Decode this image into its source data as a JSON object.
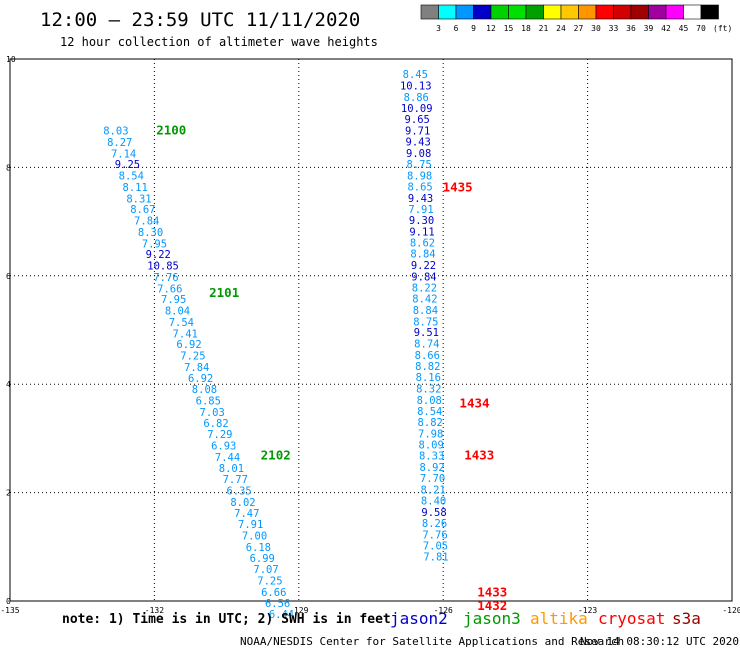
{
  "header": {
    "title": "12:00 — 23:59 UTC 11/11/2020",
    "subtitle": "12 hour collection of altimeter wave heights"
  },
  "color_scale": {
    "colors": [
      "#808080",
      "#00ffff",
      "#0098ff",
      "#0000c8",
      "#00d200",
      "#00e000",
      "#00a000",
      "#ffff00",
      "#ffc800",
      "#ff9600",
      "#ff0000",
      "#d20000",
      "#a00000",
      "#a000a0",
      "#ff00ff",
      "#ffffff",
      "#000000"
    ],
    "labels": [
      "3",
      "6",
      "9",
      "12",
      "15",
      "18",
      "21",
      "24",
      "27",
      "30",
      "33",
      "36",
      "39",
      "42",
      "45",
      "70"
    ],
    "unit": "(ft)"
  },
  "footer": {
    "note": "note: 1) Time is in UTC; 2) SWH is in feet",
    "satellites": [
      {
        "name": "jason2",
        "color": "#0000cc"
      },
      {
        "name": "jason3",
        "color": "#009900"
      },
      {
        "name": "altika",
        "color": "#ff9900"
      },
      {
        "name": "cryosat",
        "color": "#ff0000"
      },
      {
        "name": "s3a",
        "color": "#990000"
      }
    ],
    "credit": "NOAA/NESDIS Center for Satellite Applications and Research",
    "timestamp": "Nov 14 08:30:12 UTC 2020"
  },
  "chart_data": {
    "type": "scatter",
    "title": "12:00 — 23:59 UTC 11/11/2020",
    "xlim": [
      -135,
      -120
    ],
    "ylim": [
      0,
      10
    ],
    "x_ticks": [
      "-135",
      "-132",
      "-129",
      "-126",
      "-123",
      "-120"
    ],
    "y_ticks": [
      "0",
      "2",
      "4",
      "6",
      "8",
      "10"
    ],
    "grid": true,
    "tracks": [
      {
        "satellite": "jason3",
        "color": "#009900",
        "pass_labels": [
          {
            "text": "2100",
            "x": -131.65,
            "y": 8.68
          },
          {
            "text": "2101",
            "x": -130.55,
            "y": 5.68
          },
          {
            "text": "2102",
            "x": -129.48,
            "y": 2.68
          }
        ],
        "points": [
          {
            "x": -132.8,
            "y": 8.68,
            "v": "8.03"
          },
          {
            "x": -132.72,
            "y": 8.47,
            "v": "8.27"
          },
          {
            "x": -132.64,
            "y": 8.26,
            "v": "7.14"
          },
          {
            "x": -132.56,
            "y": 8.06,
            "v": "9.25"
          },
          {
            "x": -132.48,
            "y": 7.85,
            "v": "8.54"
          },
          {
            "x": -132.4,
            "y": 7.64,
            "v": "8.11"
          },
          {
            "x": -132.32,
            "y": 7.43,
            "v": "8.31"
          },
          {
            "x": -132.24,
            "y": 7.23,
            "v": "8.67"
          },
          {
            "x": -132.16,
            "y": 7.02,
            "v": "7.84"
          },
          {
            "x": -132.08,
            "y": 6.81,
            "v": "8.30"
          },
          {
            "x": -132.0,
            "y": 6.6,
            "v": "7.95"
          },
          {
            "x": -131.92,
            "y": 6.4,
            "v": "9.22"
          },
          {
            "x": -131.82,
            "y": 6.19,
            "v": "10.85"
          },
          {
            "x": -131.76,
            "y": 5.98,
            "v": "7.76"
          },
          {
            "x": -131.68,
            "y": 5.77,
            "v": "7.66"
          },
          {
            "x": -131.6,
            "y": 5.57,
            "v": "7.95"
          },
          {
            "x": -131.52,
            "y": 5.36,
            "v": "8.04"
          },
          {
            "x": -131.44,
            "y": 5.15,
            "v": "7.54"
          },
          {
            "x": -131.36,
            "y": 4.94,
            "v": "7.41"
          },
          {
            "x": -131.28,
            "y": 4.74,
            "v": "6.92"
          },
          {
            "x": -131.2,
            "y": 4.53,
            "v": "7.25"
          },
          {
            "x": -131.12,
            "y": 4.32,
            "v": "7.84"
          },
          {
            "x": -131.04,
            "y": 4.11,
            "v": "6.92"
          },
          {
            "x": -130.96,
            "y": 3.91,
            "v": "8.08"
          },
          {
            "x": -130.88,
            "y": 3.7,
            "v": "6.85"
          },
          {
            "x": -130.8,
            "y": 3.49,
            "v": "7.03"
          },
          {
            "x": -130.72,
            "y": 3.28,
            "v": "6.82"
          },
          {
            "x": -130.64,
            "y": 3.08,
            "v": "7.29"
          },
          {
            "x": -130.56,
            "y": 2.87,
            "v": "6.93"
          },
          {
            "x": -130.48,
            "y": 2.66,
            "v": "7.44"
          },
          {
            "x": -130.4,
            "y": 2.45,
            "v": "8.01"
          },
          {
            "x": -130.32,
            "y": 2.25,
            "v": "7.77"
          },
          {
            "x": -130.24,
            "y": 2.04,
            "v": "6.35"
          },
          {
            "x": -130.16,
            "y": 1.83,
            "v": "8.02"
          },
          {
            "x": -130.08,
            "y": 1.62,
            "v": "7.47"
          },
          {
            "x": -130.0,
            "y": 1.42,
            "v": "7.91"
          },
          {
            "x": -129.92,
            "y": 1.21,
            "v": "7.00"
          },
          {
            "x": -129.84,
            "y": 1.0,
            "v": "6.18"
          },
          {
            "x": -129.76,
            "y": 0.79,
            "v": "6.99"
          },
          {
            "x": -129.68,
            "y": 0.59,
            "v": "7.07"
          },
          {
            "x": -129.6,
            "y": 0.38,
            "v": "7.25"
          },
          {
            "x": -129.52,
            "y": 0.17,
            "v": "6.66"
          },
          {
            "x": -129.44,
            "y": -0.04,
            "v": "6.56"
          },
          {
            "x": -129.36,
            "y": -0.24,
            "v": "6.44"
          }
        ]
      },
      {
        "satellite": "cryosat",
        "color": "#ff0000",
        "pass_labels": [
          {
            "text": "1435",
            "x": -125.7,
            "y": 7.63
          },
          {
            "text": "1434",
            "x": -125.35,
            "y": 3.64
          },
          {
            "text": "1433",
            "x": -125.25,
            "y": 2.68
          },
          {
            "text": "1433",
            "x": -124.98,
            "y": 0.16
          },
          {
            "text": "1432",
            "x": -124.98,
            "y": -0.09
          }
        ],
        "points": [
          {
            "x": -126.58,
            "y": 9.72,
            "v": "8.45"
          },
          {
            "x": -126.57,
            "y": 9.51,
            "v": "10.13"
          },
          {
            "x": -126.56,
            "y": 9.3,
            "v": "8.86"
          },
          {
            "x": -126.55,
            "y": 9.1,
            "v": "10.09"
          },
          {
            "x": -126.54,
            "y": 8.89,
            "v": "9.65"
          },
          {
            "x": -126.53,
            "y": 8.68,
            "v": "9.71"
          },
          {
            "x": -126.52,
            "y": 8.48,
            "v": "9.43"
          },
          {
            "x": -126.51,
            "y": 8.27,
            "v": "9.08"
          },
          {
            "x": -126.5,
            "y": 8.06,
            "v": "8.75"
          },
          {
            "x": -126.49,
            "y": 7.85,
            "v": "8.98"
          },
          {
            "x": -126.48,
            "y": 7.65,
            "v": "8.65"
          },
          {
            "x": -126.47,
            "y": 7.44,
            "v": "9.43"
          },
          {
            "x": -126.46,
            "y": 7.23,
            "v": "7.91"
          },
          {
            "x": -126.45,
            "y": 7.03,
            "v": "9.30"
          },
          {
            "x": -126.44,
            "y": 6.82,
            "v": "9.11"
          },
          {
            "x": -126.43,
            "y": 6.61,
            "v": "8.62"
          },
          {
            "x": -126.42,
            "y": 6.41,
            "v": "8.84"
          },
          {
            "x": -126.41,
            "y": 6.2,
            "v": "9.22"
          },
          {
            "x": -126.4,
            "y": 5.99,
            "v": "9.84"
          },
          {
            "x": -126.39,
            "y": 5.78,
            "v": "8.22"
          },
          {
            "x": -126.38,
            "y": 5.58,
            "v": "8.42"
          },
          {
            "x": -126.37,
            "y": 5.37,
            "v": "8.84"
          },
          {
            "x": -126.36,
            "y": 5.16,
            "v": "8.75"
          },
          {
            "x": -126.35,
            "y": 4.96,
            "v": "9.51"
          },
          {
            "x": -126.34,
            "y": 4.75,
            "v": "8.74"
          },
          {
            "x": -126.33,
            "y": 4.54,
            "v": "8.66"
          },
          {
            "x": -126.32,
            "y": 4.34,
            "v": "8.82"
          },
          {
            "x": -126.31,
            "y": 4.13,
            "v": "8.16"
          },
          {
            "x": -126.3,
            "y": 3.92,
            "v": "8.32"
          },
          {
            "x": -126.29,
            "y": 3.71,
            "v": "8.08"
          },
          {
            "x": -126.28,
            "y": 3.51,
            "v": "8.54"
          },
          {
            "x": -126.27,
            "y": 3.3,
            "v": "8.82"
          },
          {
            "x": -126.26,
            "y": 3.09,
            "v": "7.98"
          },
          {
            "x": -126.25,
            "y": 2.89,
            "v": "8.09"
          },
          {
            "x": -126.24,
            "y": 2.68,
            "v": "8.33"
          },
          {
            "x": -126.23,
            "y": 2.47,
            "v": "8.92"
          },
          {
            "x": -126.22,
            "y": 2.27,
            "v": "7.70"
          },
          {
            "x": -126.21,
            "y": 2.06,
            "v": "8.21"
          },
          {
            "x": -126.2,
            "y": 1.85,
            "v": "8.40"
          },
          {
            "x": -126.19,
            "y": 1.64,
            "v": "9.58"
          },
          {
            "x": -126.18,
            "y": 1.44,
            "v": "8.26"
          },
          {
            "x": -126.17,
            "y": 1.23,
            "v": "7.76"
          },
          {
            "x": -126.16,
            "y": 1.02,
            "v": "7.05"
          },
          {
            "x": -126.15,
            "y": 0.82,
            "v": "7.81"
          }
        ]
      }
    ]
  }
}
